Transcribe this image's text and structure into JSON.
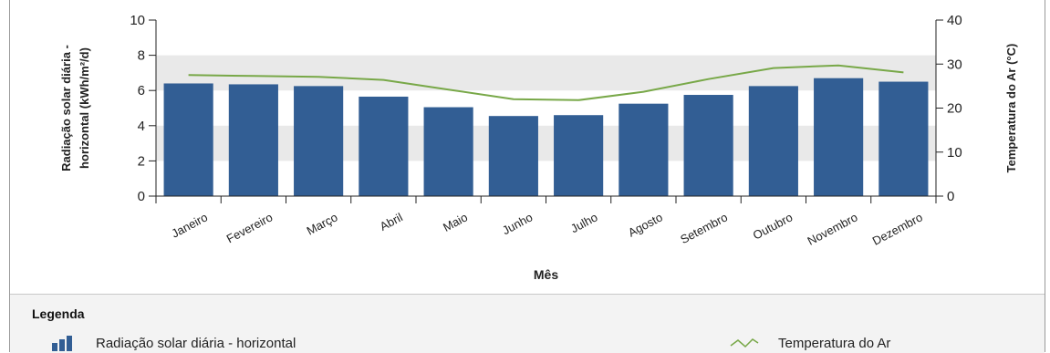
{
  "chart_data": {
    "type": "bar+line",
    "categories": [
      "Janeiro",
      "Fevereiro",
      "Março",
      "Abril",
      "Maio",
      "Junho",
      "Julho",
      "Agosto",
      "Setembro",
      "Outubro",
      "Novembro",
      "Dezembro"
    ],
    "series": [
      {
        "name": "Radiação solar diária - horizontal",
        "type": "bar",
        "axis": "left",
        "values": [
          6.4,
          6.35,
          6.25,
          5.65,
          5.05,
          4.55,
          4.6,
          5.25,
          5.75,
          6.25,
          6.7,
          6.5
        ],
        "color": "#325e94"
      },
      {
        "name": "Temperatura do Ar",
        "type": "line",
        "axis": "right",
        "values": [
          27.5,
          27.3,
          27.1,
          26.4,
          24.2,
          22.0,
          21.8,
          23.7,
          26.6,
          29.1,
          29.7,
          28.1
        ],
        "color": "#78a848"
      }
    ],
    "xlabel": "Mês",
    "ylabel_left": [
      "Radiação solar diária -",
      "horizontal (kWh/m²/d)"
    ],
    "ylabel_right": "Temperatura do Ar (°C)",
    "ylim_left": [
      0,
      10
    ],
    "ylim_right": [
      0,
      40
    ],
    "yticks_left": [
      0,
      2,
      4,
      6,
      8,
      10
    ],
    "yticks_right": [
      0,
      10,
      20,
      30,
      40
    ],
    "grid": "alternating horizontal bands"
  },
  "legend": {
    "title": "Legenda",
    "bars_label": "Radiação solar diária - horizontal",
    "line_label": "Temperatura do Ar"
  },
  "colors": {
    "bar": "#325e94",
    "line": "#78a848",
    "band": "#e9e9e9"
  },
  "icons": {
    "bars": "bar-chart-icon",
    "line": "line-chart-icon"
  }
}
